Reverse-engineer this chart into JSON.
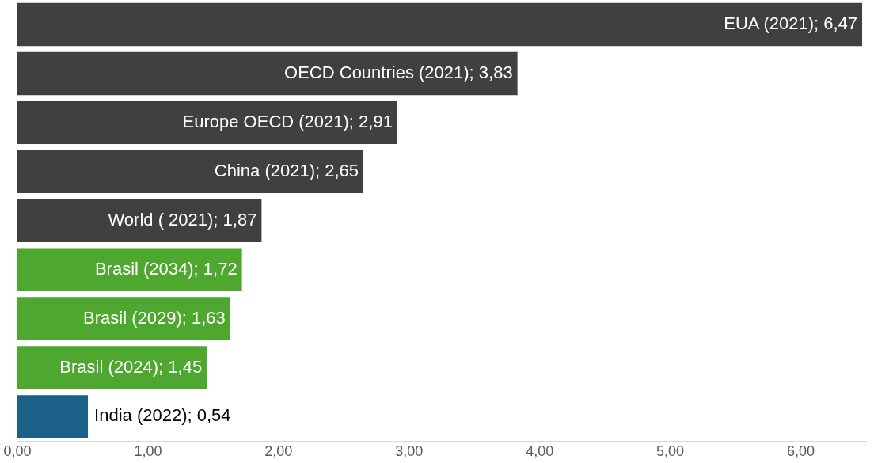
{
  "chart_data": {
    "type": "bar",
    "orientation": "horizontal",
    "categories": [
      null,
      null,
      null,
      null,
      null,
      null,
      null,
      null,
      null
    ],
    "values": [
      6.47,
      3.83,
      2.91,
      2.65,
      1.87,
      1.72,
      1.63,
      1.45,
      0.54
    ],
    "colors": [
      "#404040",
      "#404040",
      "#404040",
      "#404040",
      "#404040",
      "#4ea72e",
      "#4ea72e",
      "#4ea72e",
      "#1a6087"
    ],
    "value_labels": [
      "EUA (2021); 6,47",
      "OECD Countries (2021); 3,83",
      "Europe OECD (2021); 2,91",
      "China (2021); 2,65",
      "World ( 2021); 1,87",
      "Brasil (2034); 1,72",
      "Brasil (2029); 1,63",
      "Brasil (2024); 1,45",
      "India (2022); 0,54"
    ],
    "xlim": [
      0,
      6.5
    ],
    "xticks": [
      {
        "value": 0,
        "label": "0,00"
      },
      {
        "value": 1,
        "label": "1,00"
      },
      {
        "value": 2,
        "label": "2,00"
      },
      {
        "value": 3,
        "label": "3,00"
      },
      {
        "value": 4,
        "label": "4,00"
      },
      {
        "value": 5,
        "label": "5,00"
      },
      {
        "value": 6,
        "label": "6,00"
      }
    ],
    "tick_labels": "x",
    "grid": false,
    "legend": false
  }
}
